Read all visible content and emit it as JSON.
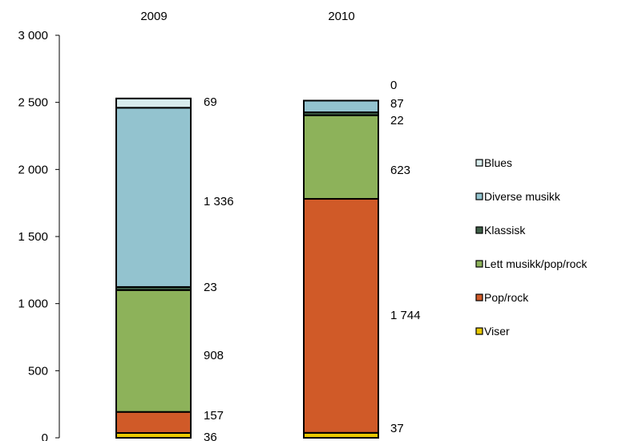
{
  "chart_data": {
    "type": "bar",
    "stacked": true,
    "categories": [
      "2009",
      "2010"
    ],
    "ylim": [
      0,
      3000
    ],
    "y_ticks": [
      0,
      500,
      1000,
      1500,
      2000,
      2500,
      3000
    ],
    "y_tick_labels": [
      "0",
      "500",
      "1 000",
      "1 500",
      "2 000",
      "2 500",
      "3 000"
    ],
    "legend_position": "right",
    "grid": false,
    "series": [
      {
        "name": "Viser",
        "color": "#e8c800",
        "values": [
          36,
          37
        ]
      },
      {
        "name": "Pop/rock",
        "color": "#d05a28",
        "values": [
          157,
          1744
        ]
      },
      {
        "name": "Lett musikk/pop/rock",
        "color": "#8db25a",
        "values": [
          908,
          623
        ]
      },
      {
        "name": "Klassisk",
        "color": "#3f5f48",
        "values": [
          23,
          22
        ]
      },
      {
        "name": "Diverse musikk",
        "color": "#93c3cf",
        "values": [
          1336,
          87
        ]
      },
      {
        "name": "Blues",
        "color": "#d8eced",
        "values": [
          69,
          0
        ]
      }
    ],
    "data_labels": [
      [
        "36",
        "157",
        "908",
        "23",
        "1 336",
        "69"
      ],
      [
        "37",
        "1 744",
        "623",
        "22",
        "87",
        "0"
      ]
    ],
    "legend_order": [
      "Blues",
      "Diverse musikk",
      "Klassisk",
      "Lett musikk/pop/rock",
      "Pop/rock",
      "Viser"
    ]
  }
}
